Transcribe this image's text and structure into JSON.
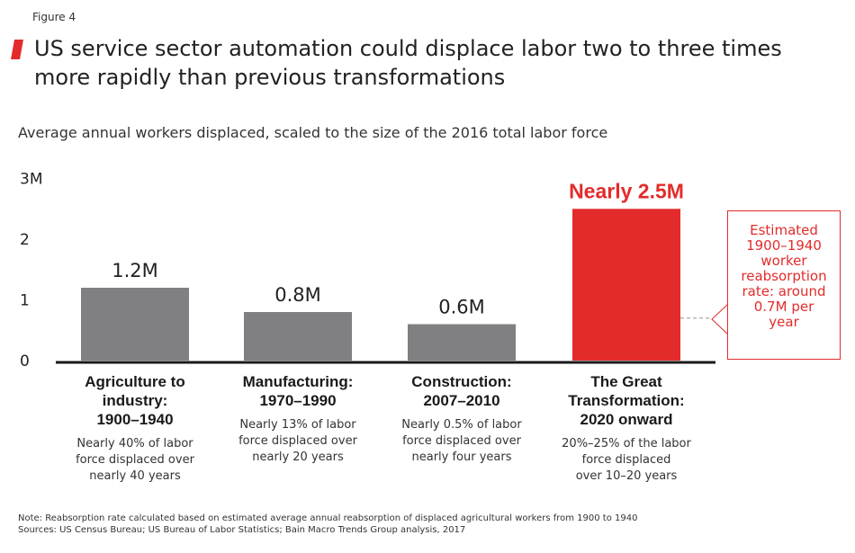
{
  "figure_label": "Figure 4",
  "title": "US service sector automation could displace labor two to three times more rapidly than previous transformations",
  "subtitle": "Average annual workers displaced, scaled to the size of the 2016 total labor force",
  "colors": {
    "accent": "#e32b2b",
    "bar_gray": "#808083",
    "axis": "#1a1a1a",
    "dashed": "#aaaaaa"
  },
  "chart_data": {
    "type": "bar",
    "categories": [
      "Agriculture to industry: 1900–1940",
      "Manufacturing: 1970–1990",
      "Construction: 2007–2010",
      "The Great Transformation: 2020 onward"
    ],
    "values": [
      1.2,
      0.8,
      0.6,
      2.5
    ],
    "unit": "M",
    "data_labels": [
      "1.2M",
      "0.8M",
      "0.6M",
      "Nearly 2.5M"
    ],
    "highlight_index": 3,
    "ylim": [
      0,
      3
    ],
    "y_ticks": [
      0,
      1,
      2,
      3
    ],
    "y_tick_labels": [
      "0",
      "1",
      "2",
      "3M"
    ],
    "reference_line": {
      "value": 0.7
    },
    "grid": false
  },
  "categories": [
    {
      "title_lines": [
        "Agriculture to",
        "industry:",
        "1900–1940"
      ],
      "desc_lines": [
        "Nearly 40% of labor",
        "force displaced over",
        "nearly 40 years"
      ]
    },
    {
      "title_lines": [
        "Manufacturing:",
        "1970–1990"
      ],
      "desc_lines": [
        "Nearly 13% of labor",
        "force displaced over",
        "nearly 20 years"
      ]
    },
    {
      "title_lines": [
        "Construction:",
        "2007–2010"
      ],
      "desc_lines": [
        "Nearly 0.5% of labor",
        "force displaced over",
        "nearly four years"
      ]
    },
    {
      "title_lines": [
        "The Great",
        "Transformation:",
        "2020 onward"
      ],
      "desc_lines": [
        "20%–25% of the labor",
        "force displaced",
        "over 10–20 years"
      ]
    }
  ],
  "callout": {
    "lines": [
      "Estimated",
      "1900–1940",
      "worker",
      "reabsorption",
      "rate: around",
      "0.7M per",
      "year"
    ]
  },
  "footer": {
    "note": "Note: Reabsorption rate calculated based on estimated average annual reabsorption of displaced agricultural workers from 1900 to 1940",
    "sources": "Sources: US Census Bureau; US Bureau of Labor Statistics; Bain Macro Trends Group analysis, 2017"
  }
}
